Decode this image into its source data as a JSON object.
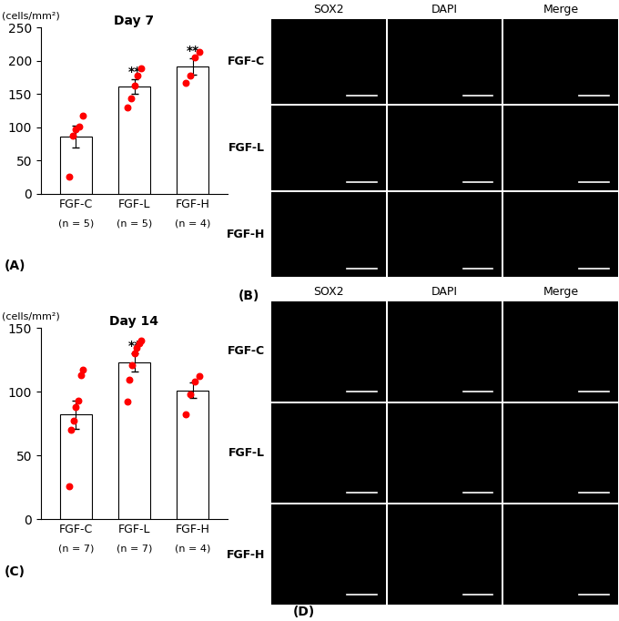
{
  "chart_data": [
    {
      "type": "bar",
      "panel_label": "(A)",
      "title": "Day 7",
      "y_label": "(cells/mm²)",
      "categories": [
        "FGF-C",
        "FGF-L",
        "FGF-H"
      ],
      "n_labels": [
        "(n = 5)",
        "(n = 5)",
        "(n = 4)"
      ],
      "annotations": [
        null,
        "**",
        "**"
      ],
      "series": [
        {
          "type": "bar",
          "color": "#ffffff",
          "values": [
            86,
            161,
            191
          ],
          "errors": [
            16,
            11,
            12
          ]
        },
        {
          "type": "scatter",
          "color": "#ff0000",
          "values": [
            [
              26,
              88,
              97,
              101,
              117
            ],
            [
              130,
              143,
              163,
              178,
              189
            ],
            [
              167,
              178,
              205,
              213
            ]
          ]
        }
      ],
      "ylim": [
        0,
        250
      ],
      "yticks": [
        0,
        50,
        100,
        150,
        200,
        250
      ]
    },
    {
      "type": "bar",
      "panel_label": "(C)",
      "title": "Day 14",
      "y_label": "(cells/mm²)",
      "categories": [
        "FGF-C",
        "FGF-L",
        "FGF-H"
      ],
      "n_labels": [
        "(n = 7)",
        "(n = 7)",
        "(n = 4)"
      ],
      "annotations": [
        null,
        "**",
        null
      ],
      "series": [
        {
          "type": "bar",
          "color": "#ffffff",
          "values": [
            82,
            123,
            101
          ],
          "errors": [
            11,
            7,
            6
          ]
        },
        {
          "type": "scatter",
          "color": "#ff0000",
          "values": [
            [
              26,
              70,
              77,
              88,
              93,
              113,
              117
            ],
            [
              92,
              109,
              121,
              130,
              134,
              138,
              140
            ],
            [
              82,
              98,
              108,
              112
            ]
          ]
        }
      ],
      "ylim": [
        0,
        150
      ],
      "yticks": [
        0,
        50,
        100,
        150
      ]
    }
  ],
  "image_panels": [
    {
      "label": "(B)",
      "columns": [
        "SOX2",
        "DAPI",
        "Merge"
      ],
      "rows": [
        "FGF-C",
        "FGF-L",
        "FGF-H"
      ]
    },
    {
      "label": "(D)",
      "columns": [
        "SOX2",
        "DAPI",
        "Merge"
      ],
      "rows": [
        "FGF-C",
        "FGF-L",
        "FGF-H"
      ]
    }
  ]
}
